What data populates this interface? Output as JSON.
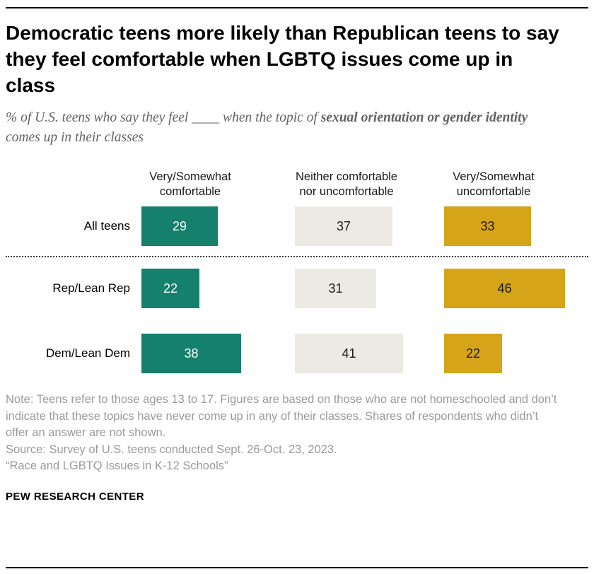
{
  "header": {
    "title": "Democratic teens more likely than Republican teens to say they feel comfortable when LGBTQ issues come up in class",
    "subtitle_prefix": "% of U.S. teens who say they feel ____ when the topic of ",
    "subtitle_bold": "sexual orientation or gender identity",
    "subtitle_suffix": " comes up in their classes"
  },
  "chart_data": {
    "type": "bar",
    "orientation": "horizontal",
    "unit": "%",
    "categories": [
      "All teens",
      "Rep/Lean Rep",
      "Dem/Lean Dem"
    ],
    "series": [
      {
        "name": "Very/Somewhat comfortable",
        "color": "#15806B",
        "value_text_color": "#ffffff",
        "values": [
          29,
          22,
          38
        ]
      },
      {
        "name": "Neither comfortable nor uncomfortable",
        "color": "#ECEAE2",
        "value_text_color": "#1a1a1a",
        "values": [
          37,
          31,
          41
        ]
      },
      {
        "name": "Very/Somewhat uncomfortable",
        "color": "#D6A419",
        "value_text_color": "#1a1a1a",
        "values": [
          33,
          46,
          22
        ]
      }
    ],
    "group_separator_after": "All teens",
    "value_range": [
      0,
      46
    ],
    "values_labeled_on_bars": true
  },
  "notes": {
    "note": "Note: Teens refer to those ages 13 to 17. Figures are based on those who are not homeschooled and don’t indicate that these topics have never come up in any of their classes. Shares of respondents who didn’t offer an answer are not shown.",
    "source": "Source: Survey of U.S. teens conducted Sept. 26-Oct. 23, 2023.",
    "report": "“Race and LGBTQ Issues in K-12 Schools”"
  },
  "footer": {
    "brand": "PEW RESEARCH CENTER"
  }
}
